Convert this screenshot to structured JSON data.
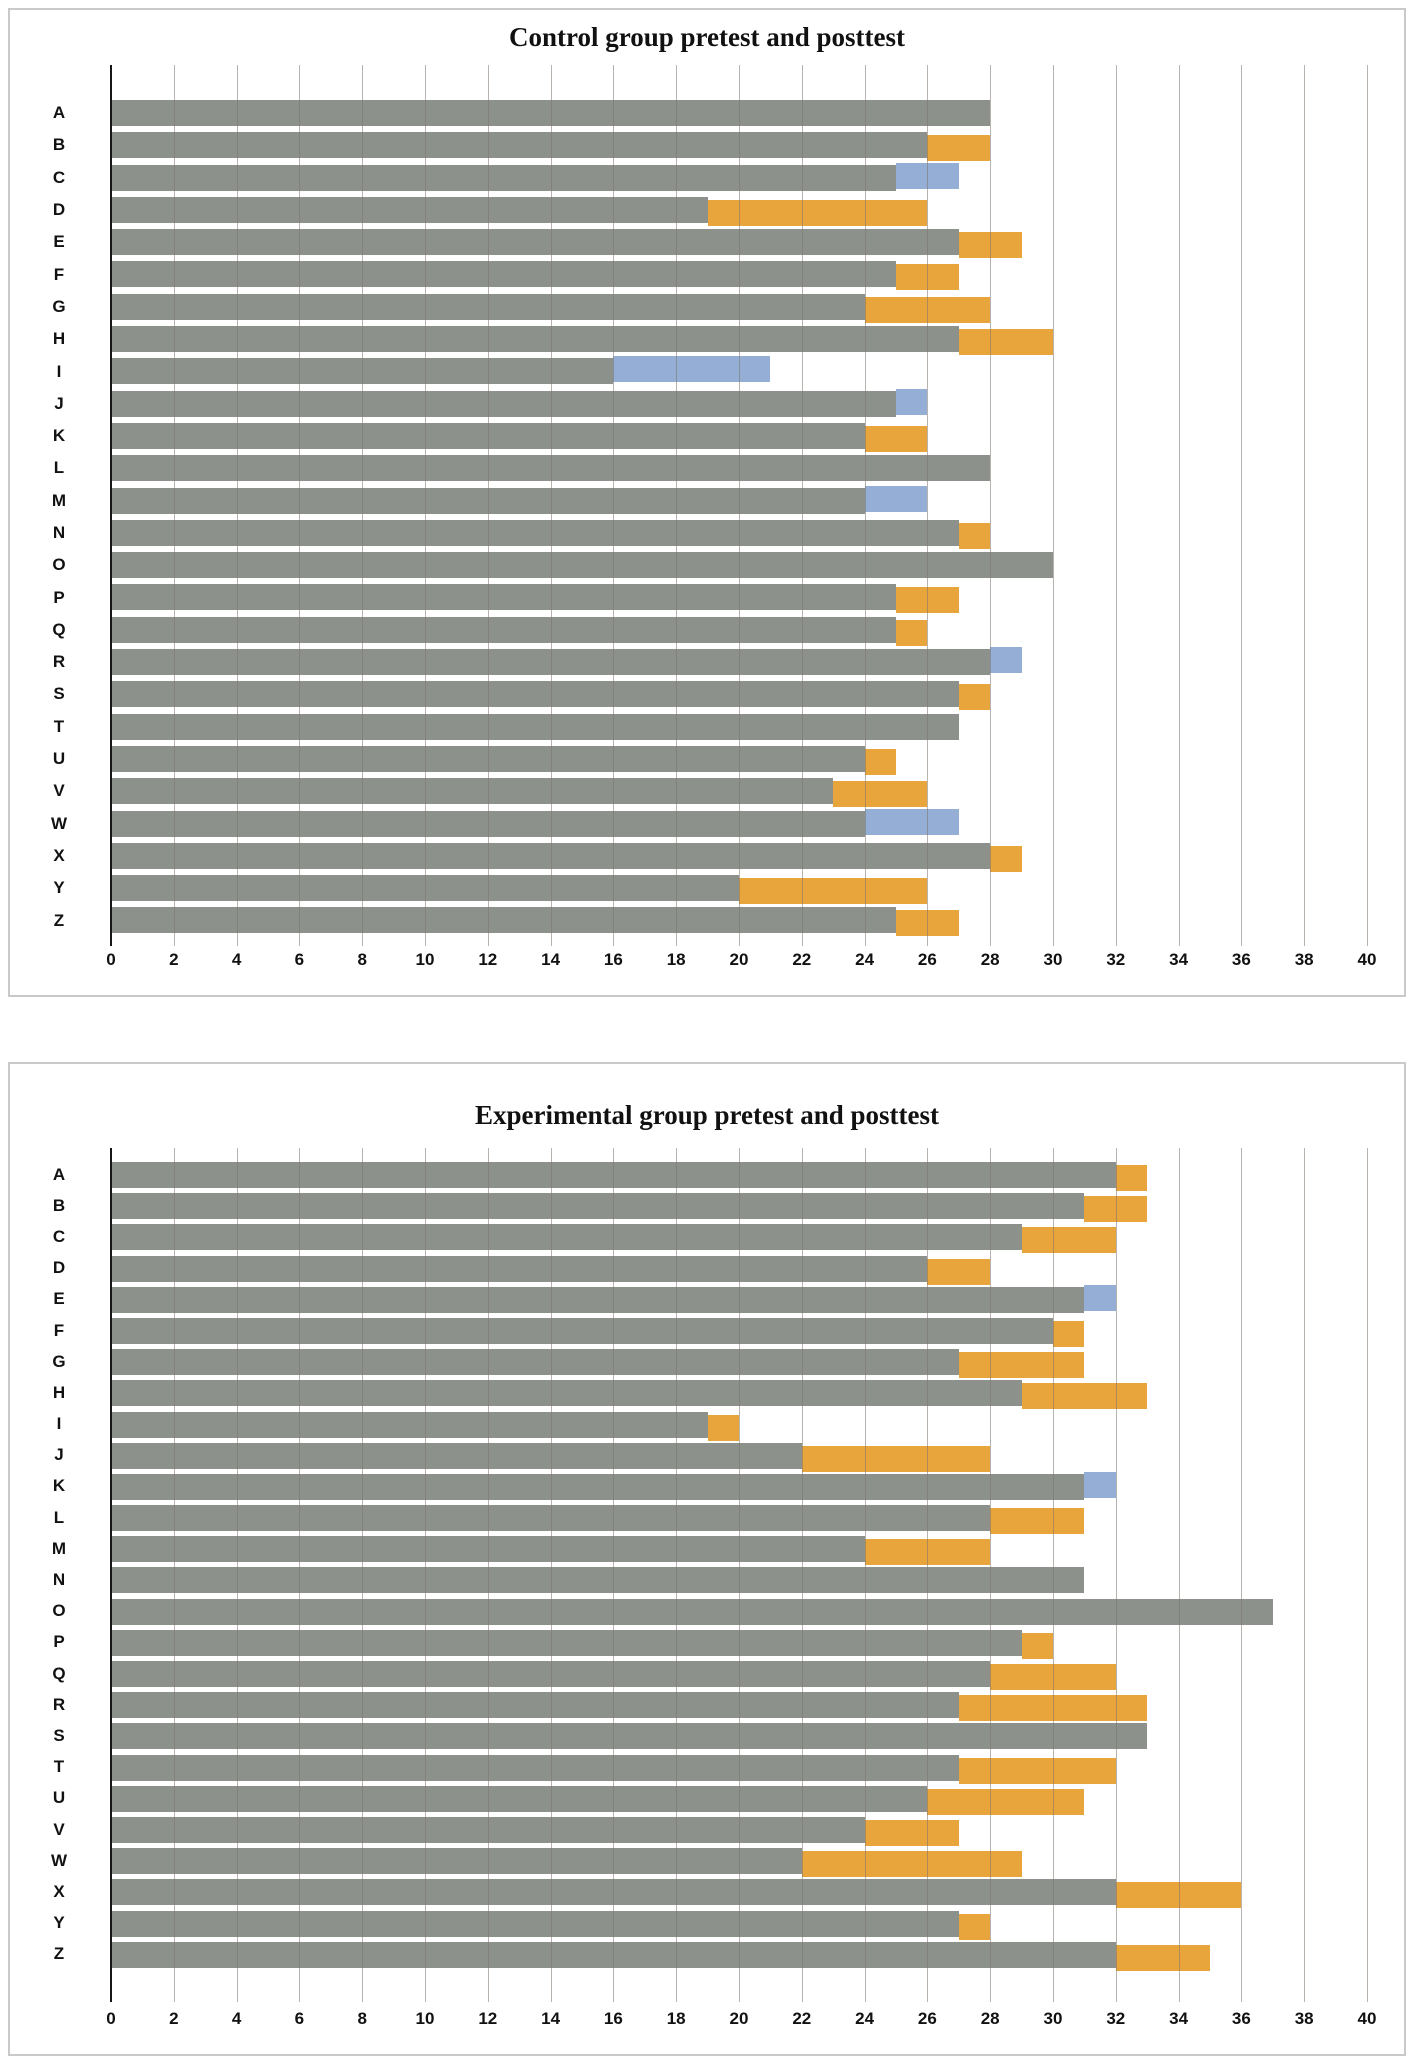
{
  "colors": {
    "overlap_bar": "#8c918c",
    "gain_segment": "#e8a53c",
    "loss_segment": "#95aed6",
    "gridline": "#7d756b",
    "panel_border": "#c9c9c9",
    "text": "#111111",
    "background": "#ffffff"
  },
  "axis": {
    "min": 0,
    "max": 40,
    "step": 2,
    "tick_labels": [
      "0",
      "2",
      "4",
      "6",
      "8",
      "10",
      "12",
      "14",
      "16",
      "18",
      "20",
      "22",
      "24",
      "26",
      "28",
      "30",
      "32",
      "34",
      "36",
      "38",
      "40"
    ]
  },
  "chart_data": [
    {
      "type": "bar",
      "orientation": "horizontal",
      "title": "Control group pretest and posttest",
      "xlim": [
        0,
        40
      ],
      "grid": true,
      "legend": "none",
      "encoding": {
        "gray": "overlap of pretest and posttest scores",
        "orange": "posttest higher than pretest (gain)",
        "blue": "pretest higher than posttest (decline)"
      },
      "categories": [
        "A",
        "B",
        "C",
        "D",
        "E",
        "F",
        "G",
        "H",
        "I",
        "J",
        "K",
        "L",
        "M",
        "N",
        "O",
        "P",
        "Q",
        "R",
        "S",
        "T",
        "U",
        "V",
        "W",
        "X",
        "Y",
        "Z"
      ],
      "series": [
        {
          "name": "pretest",
          "values": [
            28,
            26,
            27,
            19,
            27,
            25,
            24,
            27,
            21,
            26,
            24,
            28,
            26,
            27,
            30,
            25,
            25,
            29,
            27,
            27,
            24,
            23,
            27,
            28,
            20,
            25
          ]
        },
        {
          "name": "posttest",
          "values": [
            28,
            28,
            25,
            26,
            29,
            27,
            28,
            30,
            16,
            25,
            26,
            28,
            24,
            28,
            30,
            27,
            26,
            28,
            28,
            27,
            25,
            26,
            24,
            29,
            26,
            27
          ]
        }
      ]
    },
    {
      "type": "bar",
      "orientation": "horizontal",
      "title": "Experimental group pretest and posttest",
      "xlim": [
        0,
        40
      ],
      "grid": true,
      "legend": "none",
      "encoding": {
        "gray": "overlap of pretest and posttest scores",
        "orange": "posttest higher than pretest (gain)",
        "blue": "pretest higher than posttest (decline)"
      },
      "categories": [
        "A",
        "B",
        "C",
        "D",
        "E",
        "F",
        "G",
        "H",
        "I",
        "J",
        "K",
        "L",
        "M",
        "N",
        "O",
        "P",
        "Q",
        "R",
        "S",
        "T",
        "U",
        "V",
        "W",
        "X",
        "Y",
        "Z"
      ],
      "series": [
        {
          "name": "pretest",
          "values": [
            32,
            31,
            29,
            26,
            32,
            30,
            27,
            29,
            19,
            22,
            32,
            28,
            24,
            31,
            37,
            29,
            28,
            27,
            33,
            27,
            26,
            24,
            22,
            32,
            27,
            32
          ]
        },
        {
          "name": "posttest",
          "values": [
            33,
            33,
            32,
            28,
            31,
            31,
            31,
            33,
            20,
            28,
            31,
            31,
            28,
            31,
            37,
            30,
            32,
            33,
            33,
            32,
            31,
            27,
            29,
            36,
            28,
            35
          ]
        }
      ]
    }
  ]
}
